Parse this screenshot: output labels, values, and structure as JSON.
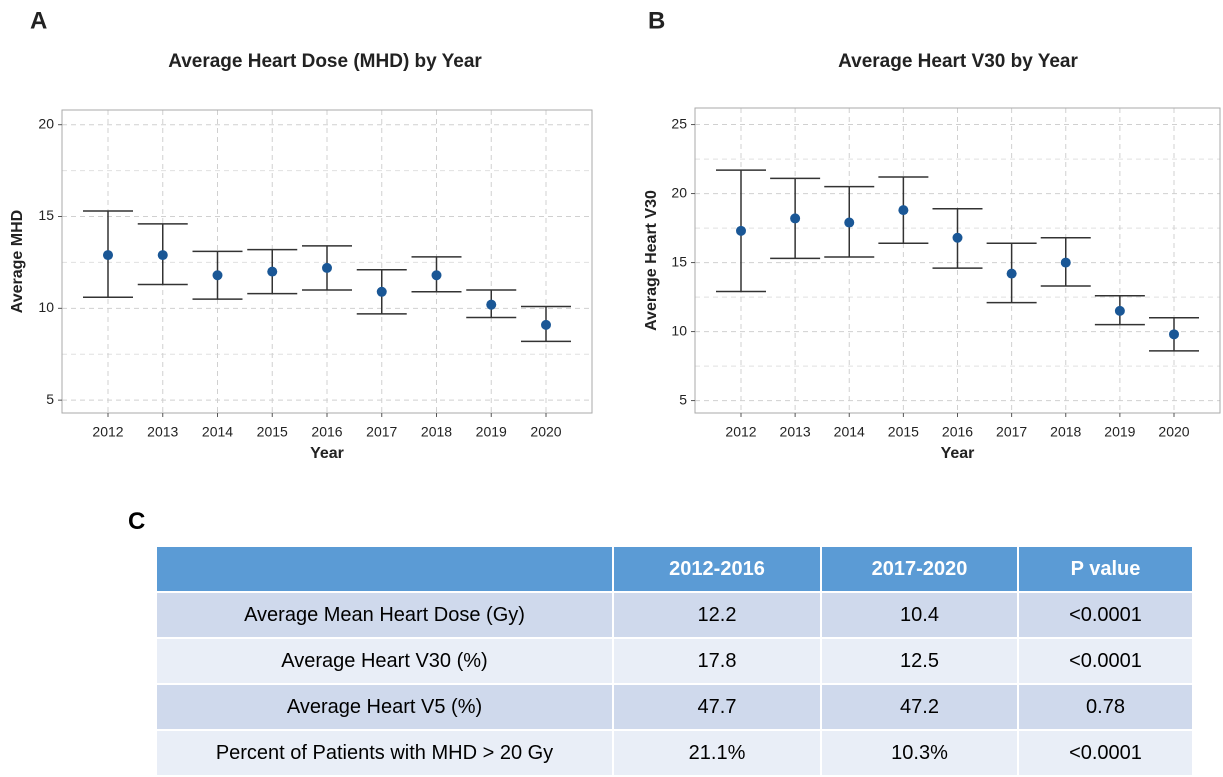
{
  "chart_data": [
    {
      "type": "errorbar",
      "panel": "A",
      "title": "Average Heart Dose (MHD) by Year",
      "xlabel": "Year",
      "ylabel": "Average MHD",
      "categories": [
        "2012",
        "2013",
        "2014",
        "2015",
        "2016",
        "2017",
        "2018",
        "2019",
        "2020"
      ],
      "series": [
        {
          "color": "#1a5796",
          "values": [
            12.9,
            12.9,
            11.8,
            12.0,
            12.2,
            10.9,
            11.8,
            10.2,
            9.1
          ],
          "lower": [
            10.6,
            11.3,
            10.5,
            10.8,
            11.0,
            9.7,
            10.9,
            9.5,
            8.2
          ],
          "upper": [
            15.3,
            14.6,
            13.1,
            13.2,
            13.4,
            12.1,
            12.8,
            11.0,
            10.1
          ]
        }
      ],
      "ylim": [
        4.3,
        20.8
      ],
      "yticks": [
        5,
        10,
        15,
        20
      ],
      "yminor": [
        7.5,
        12.5,
        17.5
      ],
      "grid": true
    },
    {
      "type": "errorbar",
      "panel": "B",
      "title": "Average Heart V30 by Year",
      "xlabel": "Year",
      "ylabel": "Average Heart V30",
      "categories": [
        "2012",
        "2013",
        "2014",
        "2015",
        "2016",
        "2017",
        "2018",
        "2019",
        "2020"
      ],
      "series": [
        {
          "color": "#1a5796",
          "values": [
            17.3,
            18.2,
            17.9,
            18.8,
            16.8,
            14.2,
            15.0,
            11.5,
            9.8
          ],
          "lower": [
            12.9,
            15.3,
            15.4,
            16.4,
            14.6,
            12.1,
            13.3,
            10.5,
            8.6
          ],
          "upper": [
            21.7,
            21.1,
            20.5,
            21.2,
            18.9,
            16.4,
            16.8,
            12.6,
            11.0
          ]
        }
      ],
      "ylim": [
        4.1,
        26.2
      ],
      "yticks": [
        5,
        10,
        15,
        20,
        25
      ],
      "yminor": [
        7.5,
        12.5,
        17.5,
        22.5
      ],
      "grid": true
    }
  ],
  "table": {
    "panel": "C",
    "header": [
      "2012-2016",
      "2017-2020",
      "P value"
    ],
    "rows": [
      [
        "Average Mean Heart Dose (Gy)",
        "12.2",
        "10.4",
        "<0.0001"
      ],
      [
        "Average Heart V30 (%)",
        "17.8",
        "12.5",
        "<0.0001"
      ],
      [
        "Average Heart V5 (%)",
        "47.7",
        "47.2",
        "0.78"
      ],
      [
        "Percent of Patients with MHD > 20 Gy",
        "21.1%",
        "10.3%",
        "<0.0001"
      ]
    ]
  }
}
